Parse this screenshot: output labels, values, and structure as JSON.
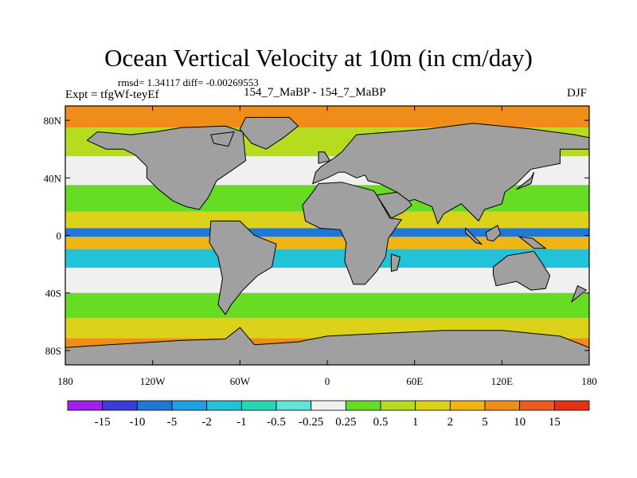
{
  "title": "Ocean Vertical Velocity at 10m (in cm/day)",
  "stats_line": "rmsd= 1.34117 diff= -0.00269553",
  "experiment": "Expt = tfgWf-teyEf",
  "runs": "154_7_MaBP - 154_7_MaBP",
  "season": "DJF",
  "chart_data": {
    "type": "heatmap",
    "title": "Ocean Vertical Velocity at 10m (in cm/day)",
    "projection": "cylindrical equidistant",
    "x_range": [
      -180,
      180
    ],
    "y_range": [
      -90,
      90
    ],
    "x_ticks": [
      {
        "value": -180,
        "label": "180"
      },
      {
        "value": -120,
        "label": "120W"
      },
      {
        "value": -60,
        "label": "60W"
      },
      {
        "value": 0,
        "label": "0"
      },
      {
        "value": 60,
        "label": "60E"
      },
      {
        "value": 120,
        "label": "120E"
      },
      {
        "value": 180,
        "label": "180"
      }
    ],
    "y_ticks": [
      {
        "value": 80,
        "label": "80N"
      },
      {
        "value": 40,
        "label": "40N"
      },
      {
        "value": 0,
        "label": "0"
      },
      {
        "value": -40,
        "label": "40S"
      },
      {
        "value": -80,
        "label": "80S"
      }
    ],
    "colorbar": {
      "labels": [
        "-15",
        "-10",
        "-5",
        "-2",
        "-1",
        "-0.5",
        "-0.25",
        "0.25",
        "0.5",
        "1",
        "2",
        "5",
        "10",
        "15"
      ],
      "colors": [
        "#a020f0",
        "#3c3cd8",
        "#1e78dc",
        "#1ea0e6",
        "#22c2d8",
        "#24d8b4",
        "#60e6d8",
        "#f0f0f0",
        "#66dd22",
        "#b6dc20",
        "#dcd21a",
        "#f0b414",
        "#f08c18",
        "#f05a1c",
        "#e63212"
      ]
    },
    "land_color": "#a0a0a0",
    "field_bands": [
      {
        "lat": 85,
        "level": "10"
      },
      {
        "lat": 65,
        "level": "1"
      },
      {
        "lat": 45,
        "level": "0.25"
      },
      {
        "lat": 25,
        "level": "0.5"
      },
      {
        "lat": 8,
        "level": "2"
      },
      {
        "lat": 2,
        "level": "-5"
      },
      {
        "lat": -4,
        "level": "5"
      },
      {
        "lat": -15,
        "level": "-1"
      },
      {
        "lat": -30,
        "level": "0.25"
      },
      {
        "lat": -50,
        "level": "0.5"
      },
      {
        "lat": -65,
        "level": "2"
      },
      {
        "lat": -78,
        "level": "10"
      }
    ],
    "land_masses": [
      {
        "name": "North America",
        "lonlat": [
          [
            -100,
            75
          ],
          [
            -70,
            76
          ],
          [
            -58,
            72
          ],
          [
            -56,
            52
          ],
          [
            -66,
            45
          ],
          [
            -76,
            38
          ],
          [
            -80,
            30
          ],
          [
            -82,
            26
          ],
          [
            -88,
            18
          ],
          [
            -97,
            20
          ],
          [
            -106,
            24
          ],
          [
            -116,
            32
          ],
          [
            -124,
            40
          ],
          [
            -124,
            48
          ],
          [
            -132,
            56
          ],
          [
            -140,
            60
          ],
          [
            -152,
            60
          ],
          [
            -165,
            66
          ],
          [
            -158,
            72
          ],
          [
            -135,
            70
          ],
          [
            -118,
            72
          ]
        ]
      },
      {
        "name": "Greenland",
        "lonlat": [
          [
            -56,
            82
          ],
          [
            -26,
            82
          ],
          [
            -20,
            76
          ],
          [
            -30,
            68
          ],
          [
            -42,
            60
          ],
          [
            -52,
            64
          ],
          [
            -60,
            74
          ]
        ]
      },
      {
        "name": "South America",
        "lonlat": [
          [
            -80,
            10
          ],
          [
            -60,
            10
          ],
          [
            -50,
            0
          ],
          [
            -35,
            -6
          ],
          [
            -38,
            -22
          ],
          [
            -48,
            -28
          ],
          [
            -58,
            -38
          ],
          [
            -66,
            -48
          ],
          [
            -70,
            -55
          ],
          [
            -75,
            -48
          ],
          [
            -72,
            -30
          ],
          [
            -75,
            -15
          ],
          [
            -81,
            -5
          ]
        ]
      },
      {
        "name": "Eurasia",
        "lonlat": [
          [
            -10,
            36
          ],
          [
            -8,
            44
          ],
          [
            -4,
            48
          ],
          [
            5,
            54
          ],
          [
            10,
            58
          ],
          [
            20,
            70
          ],
          [
            45,
            72
          ],
          [
            70,
            74
          ],
          [
            100,
            78
          ],
          [
            140,
            74
          ],
          [
            170,
            70
          ],
          [
            180,
            68
          ],
          [
            180,
            60
          ],
          [
            160,
            60
          ],
          [
            160,
            50
          ],
          [
            140,
            46
          ],
          [
            130,
            36
          ],
          [
            122,
            30
          ],
          [
            120,
            22
          ],
          [
            108,
            18
          ],
          [
            104,
            10
          ],
          [
            98,
            16
          ],
          [
            92,
            22
          ],
          [
            80,
            15
          ],
          [
            76,
            8
          ],
          [
            72,
            20
          ],
          [
            60,
            25
          ],
          [
            56,
            24
          ],
          [
            48,
            30
          ],
          [
            36,
            36
          ],
          [
            28,
            38
          ],
          [
            26,
            42
          ],
          [
            20,
            40
          ],
          [
            12,
            44
          ],
          [
            8,
            44
          ],
          [
            0,
            40
          ]
        ]
      },
      {
        "name": "Africa",
        "lonlat": [
          [
            -17,
            21
          ],
          [
            -10,
            30
          ],
          [
            -6,
            36
          ],
          [
            10,
            37
          ],
          [
            32,
            31
          ],
          [
            34,
            28
          ],
          [
            43,
            12
          ],
          [
            51,
            11
          ],
          [
            42,
            -2
          ],
          [
            40,
            -15
          ],
          [
            34,
            -25
          ],
          [
            26,
            -34
          ],
          [
            18,
            -34
          ],
          [
            12,
            -18
          ],
          [
            13,
            -5
          ],
          [
            9,
            4
          ],
          [
            -5,
            5
          ],
          [
            -15,
            10
          ]
        ]
      },
      {
        "name": "Arabia",
        "lonlat": [
          [
            34,
            28
          ],
          [
            48,
            30
          ],
          [
            56,
            24
          ],
          [
            58,
            21
          ],
          [
            52,
            16
          ],
          [
            44,
            12
          ]
        ]
      },
      {
        "name": "Australia",
        "lonlat": [
          [
            114,
            -22
          ],
          [
            124,
            -14
          ],
          [
            136,
            -12
          ],
          [
            142,
            -11
          ],
          [
            148,
            -20
          ],
          [
            153,
            -28
          ],
          [
            150,
            -37
          ],
          [
            140,
            -38
          ],
          [
            130,
            -32
          ],
          [
            116,
            -35
          ],
          [
            114,
            -27
          ]
        ]
      },
      {
        "name": "Antarctica",
        "lonlat": [
          [
            -180,
            -78
          ],
          [
            -150,
            -76
          ],
          [
            -100,
            -73
          ],
          [
            -70,
            -72
          ],
          [
            -60,
            -64
          ],
          [
            -50,
            -76
          ],
          [
            -20,
            -74
          ],
          [
            0,
            -70
          ],
          [
            40,
            -68
          ],
          [
            80,
            -66
          ],
          [
            120,
            -66
          ],
          [
            160,
            -70
          ],
          [
            180,
            -78
          ],
          [
            180,
            -90
          ],
          [
            -180,
            -90
          ]
        ]
      },
      {
        "name": "Madagascar",
        "lonlat": [
          [
            44,
            -13
          ],
          [
            50,
            -15
          ],
          [
            48,
            -24
          ],
          [
            44,
            -25
          ]
        ]
      },
      {
        "name": "New Guinea",
        "lonlat": [
          [
            132,
            -1
          ],
          [
            141,
            -2
          ],
          [
            150,
            -9
          ],
          [
            142,
            -9
          ]
        ]
      },
      {
        "name": "Borneo",
        "lonlat": [
          [
            109,
            2
          ],
          [
            117,
            7
          ],
          [
            119,
            1
          ],
          [
            114,
            -4
          ],
          [
            110,
            -3
          ]
        ]
      },
      {
        "name": "Sumatra",
        "lonlat": [
          [
            95,
            5
          ],
          [
            106,
            -6
          ],
          [
            102,
            -5
          ],
          [
            95,
            2
          ]
        ]
      },
      {
        "name": "Japan",
        "lonlat": [
          [
            130,
            32
          ],
          [
            140,
            36
          ],
          [
            142,
            44
          ],
          [
            140,
            40
          ]
        ]
      },
      {
        "name": "British Isles",
        "lonlat": [
          [
            -6,
            50
          ],
          [
            2,
            52
          ],
          [
            -2,
            58
          ],
          [
            -6,
            58
          ]
        ]
      },
      {
        "name": "Baffin Island",
        "lonlat": [
          [
            -80,
            70
          ],
          [
            -64,
            72
          ],
          [
            -68,
            62
          ],
          [
            -78,
            64
          ]
        ]
      },
      {
        "name": "New Zealand",
        "lonlat": [
          [
            172,
            -35
          ],
          [
            178,
            -38
          ],
          [
            168,
            -46
          ]
        ]
      }
    ]
  }
}
